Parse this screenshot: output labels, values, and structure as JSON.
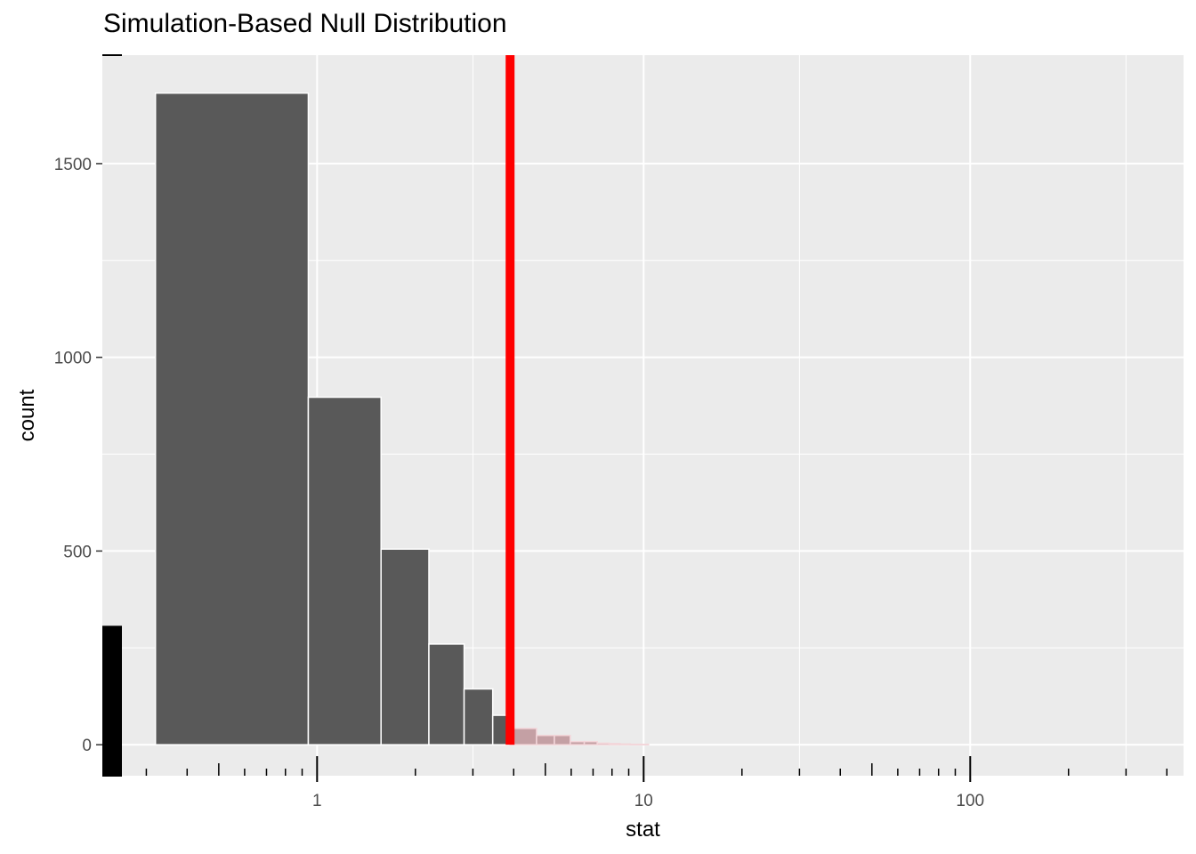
{
  "chart_data": {
    "type": "bar",
    "title": "Simulation-Based Null Distribution",
    "xlabel": "stat",
    "ylabel": "count",
    "x_scale": "log10",
    "xlim": [
      0.22,
      450
    ],
    "ylim": [
      -80,
      1780
    ],
    "x_ticks": [
      1,
      10,
      100
    ],
    "x_tick_labels": [
      "1",
      "10",
      "100"
    ],
    "x_minor_ticks": [
      0.3,
      0.4,
      0.5,
      0.6,
      0.7,
      0.8,
      0.9,
      2,
      3,
      4,
      5,
      6,
      7,
      8,
      9,
      20,
      30,
      40,
      50,
      60,
      70,
      80,
      90,
      200,
      300,
      400
    ],
    "y_ticks": [
      0,
      500,
      1000,
      1500
    ],
    "y_tick_labels": [
      "0",
      "500",
      "1000",
      "1500"
    ],
    "y_gridlines": [
      250,
      750,
      1250
    ],
    "bins": [
      {
        "x0": 0.32,
        "x1": 0.94,
        "count": 1682,
        "shaded": false
      },
      {
        "x0": 0.94,
        "x1": 1.57,
        "count": 897,
        "shaded": false
      },
      {
        "x0": 1.57,
        "x1": 2.2,
        "count": 505,
        "shaded": false
      },
      {
        "x0": 2.2,
        "x1": 2.82,
        "count": 260,
        "shaded": false
      },
      {
        "x0": 2.82,
        "x1": 3.45,
        "count": 144,
        "shaded": false
      },
      {
        "x0": 3.45,
        "x1": 3.9,
        "count": 76,
        "shaded": false
      },
      {
        "x0": 3.9,
        "x1": 4.7,
        "count": 42,
        "shaded": true
      },
      {
        "x0": 4.7,
        "x1": 5.33,
        "count": 24,
        "shaded": true
      },
      {
        "x0": 5.33,
        "x1": 5.96,
        "count": 24,
        "shaded": true
      },
      {
        "x0": 5.96,
        "x1": 6.58,
        "count": 8,
        "shaded": true
      },
      {
        "x0": 6.58,
        "x1": 7.21,
        "count": 8,
        "shaded": true
      },
      {
        "x0": 7.21,
        "x1": 7.84,
        "count": 4,
        "shaded": true
      },
      {
        "x0": 7.84,
        "x1": 8.47,
        "count": 3,
        "shaded": true
      },
      {
        "x0": 8.47,
        "x1": 9.1,
        "count": 2,
        "shaded": true
      },
      {
        "x0": 9.1,
        "x1": 9.72,
        "count": 1,
        "shaded": true
      },
      {
        "x0": 9.72,
        "x1": 10.35,
        "count": 1,
        "shaded": true
      }
    ],
    "offscale_bar_count": 307,
    "observed_stat": 3.9,
    "colors": {
      "panel": "#ebebeb",
      "grid": "#ffffff",
      "bar": "#595959",
      "shaded_bar": "#c4a0a4",
      "observed_line": "#ff0000",
      "rug": "#000000"
    }
  }
}
